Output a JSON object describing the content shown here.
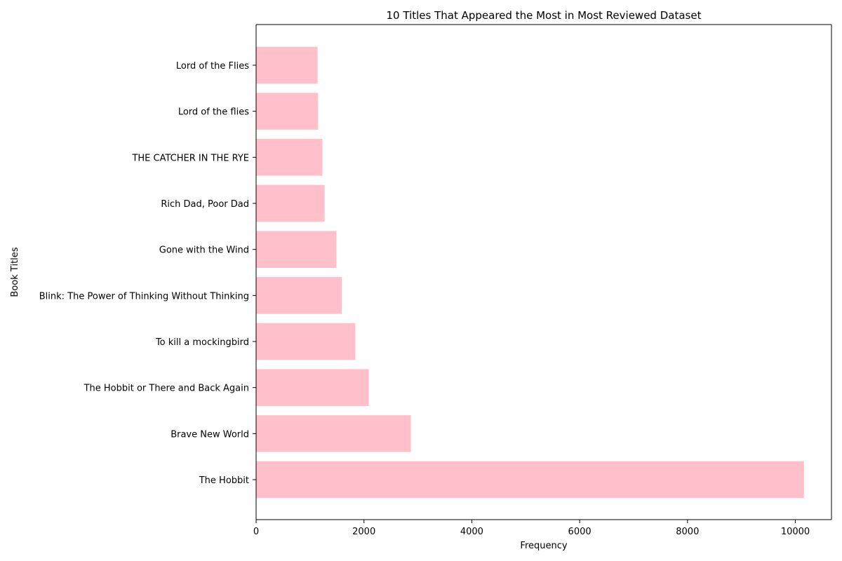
{
  "chart_data": {
    "type": "bar",
    "orientation": "horizontal",
    "title": "10 Titles That Appeared the Most in Most Reviewed Dataset",
    "xlabel": "Frequency",
    "ylabel": "Book Titles",
    "categories": [
      "The Hobbit",
      "Brave New World",
      "The Hobbit or There and Back Again",
      "To kill a mockingbird",
      "Blink: The Power of Thinking Without Thinking",
      "Gone with the Wind",
      "Rich Dad, Poor Dad",
      "THE CATCHER IN THE RYE",
      "Lord of the flies",
      "Lord of the Flies"
    ],
    "values": [
      10160,
      2870,
      2090,
      1840,
      1590,
      1490,
      1270,
      1230,
      1150,
      1140
    ],
    "xlim": [
      0,
      10670
    ],
    "xticks": [
      0,
      2000,
      4000,
      6000,
      8000,
      10000
    ],
    "xtick_labels": [
      "0",
      "2000",
      "4000",
      "6000",
      "8000",
      "10000"
    ],
    "bar_color": "#ffc0cb",
    "grid": false,
    "legend": "none"
  }
}
